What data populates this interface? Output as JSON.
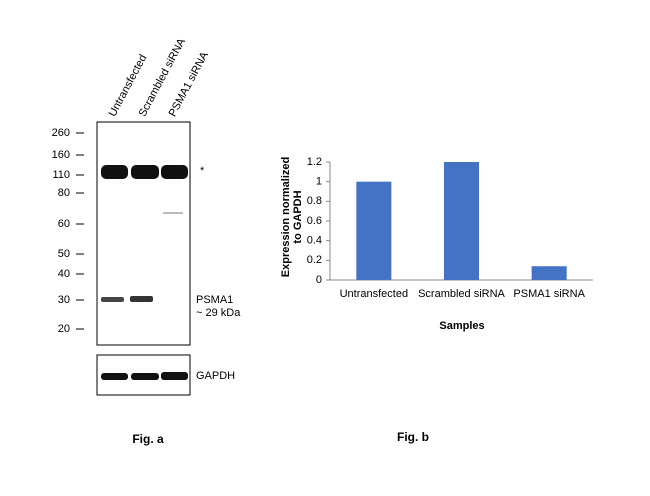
{
  "blot": {
    "lanes": [
      "Untransfected",
      "Scrambled siRNA",
      "PSMA1 siRNA"
    ],
    "markers": [
      260,
      160,
      110,
      80,
      60,
      50,
      40,
      30,
      20
    ],
    "band_label": "PSMA1",
    "band_size": "~ 29 kDa",
    "asterisk": "*",
    "loading_control": "GAPDH",
    "caption": "Fig. a"
  },
  "chart_data": {
    "type": "bar",
    "categories": [
      "Untransfected",
      "Scrambled siRNA",
      "PSMA1 siRNA"
    ],
    "values": [
      1,
      1.2,
      0.14
    ],
    "color": "#4472c4",
    "ylim": [
      0,
      1.2
    ],
    "yticks": [
      0,
      0.2,
      0.4,
      0.6,
      0.8,
      1,
      1.2
    ],
    "ylabel": "Expression normalized to GAPDH",
    "xlabel": "Samples",
    "caption": "Fig. b"
  }
}
